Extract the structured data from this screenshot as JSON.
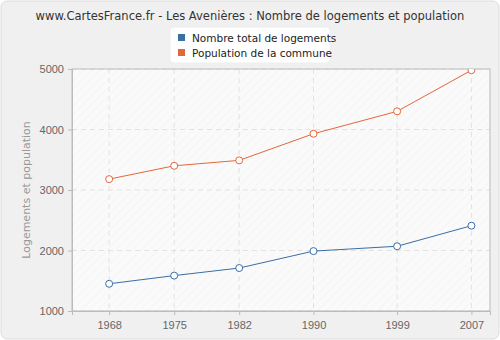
{
  "chart_data": {
    "type": "line",
    "title": "www.CartesFrance.fr - Les Avenières : Nombre de logements et population",
    "y_label": "Logements et population",
    "x": [
      1968,
      1975,
      1982,
      1990,
      1999,
      2007
    ],
    "series": [
      {
        "name": "Nombre total de logements",
        "color": "#3a6ea5",
        "values": [
          1450,
          1585,
          1710,
          1990,
          2070,
          2410
        ]
      },
      {
        "name": "Population de la commune",
        "color": "#e2673a",
        "values": [
          3180,
          3400,
          3490,
          3930,
          4300,
          4980
        ]
      }
    ],
    "xlim": [
      1964,
      2009
    ],
    "xticks": [
      1968,
      1975,
      1982,
      1990,
      1999,
      2007
    ],
    "ylim": [
      1000,
      5000
    ],
    "yticks": [
      1000,
      2000,
      3000,
      4000,
      5000
    ],
    "grid": true,
    "legend": "top",
    "marker": "circle"
  }
}
